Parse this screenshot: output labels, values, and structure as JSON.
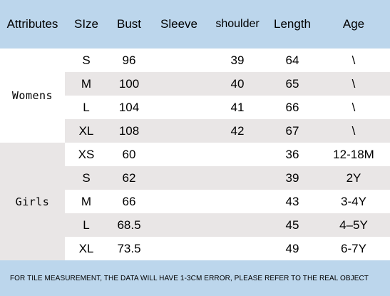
{
  "header": {
    "attributes": "Attributes",
    "size": "SIze",
    "bust": "Bust",
    "sleeve": "Sleeve",
    "shoulder": "shoulder",
    "length": "Length",
    "age": "Age"
  },
  "groups": {
    "womens": "Womens",
    "girls": "Girls"
  },
  "rows": [
    {
      "size": "S",
      "bust": "96",
      "sleeve": "",
      "shoulder": "39",
      "length": "64",
      "age": "\\"
    },
    {
      "size": "M",
      "bust": "100",
      "sleeve": "",
      "shoulder": "40",
      "length": "65",
      "age": "\\"
    },
    {
      "size": "L",
      "bust": "104",
      "sleeve": "",
      "shoulder": "41",
      "length": "66",
      "age": "\\"
    },
    {
      "size": "XL",
      "bust": "108",
      "sleeve": "",
      "shoulder": "42",
      "length": "67",
      "age": "\\"
    },
    {
      "size": "XS",
      "bust": "60",
      "sleeve": "",
      "shoulder": "",
      "length": "36",
      "age": "12-18M"
    },
    {
      "size": "S",
      "bust": "62",
      "sleeve": "",
      "shoulder": "",
      "length": "39",
      "age": "2Y"
    },
    {
      "size": "M",
      "bust": "66",
      "sleeve": "",
      "shoulder": "",
      "length": "43",
      "age": "3-4Y"
    },
    {
      "size": "L",
      "bust": "68.5",
      "sleeve": "",
      "shoulder": "",
      "length": "45",
      "age": "4–5Y"
    },
    {
      "size": "XL",
      "bust": "73.5",
      "sleeve": "",
      "shoulder": "",
      "length": "49",
      "age": "6-7Y"
    }
  ],
  "footer": {
    "note": "FOR TILE MEASUREMENT, THE DATA WILL HAVE 1-3CM ERROR, PLEASE REFER TO THE REAL OBJECT"
  },
  "colors": {
    "header_bg": "#bcd6ec",
    "row_shade": "#e9e6e6"
  }
}
